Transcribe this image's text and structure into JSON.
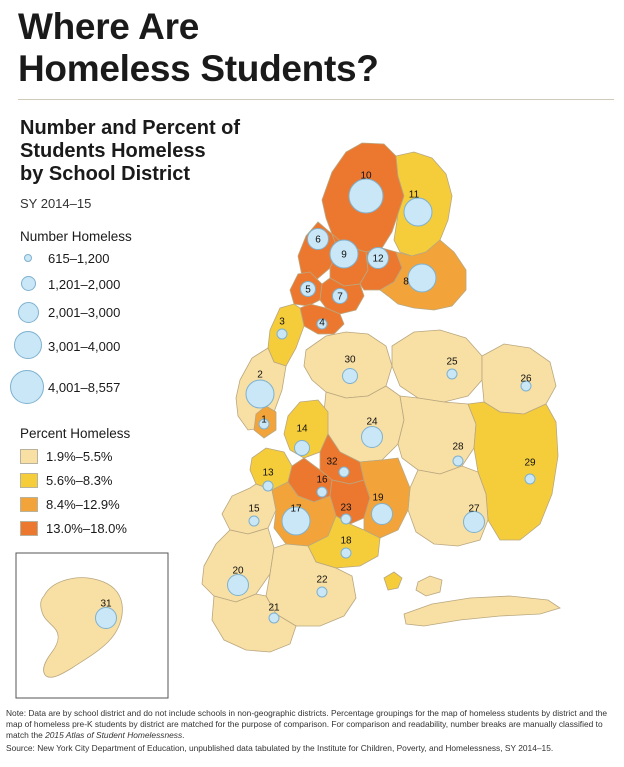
{
  "header": {
    "title_line1": "Where Are",
    "title_line2": "Homeless Students?"
  },
  "map": {
    "title_line1": "Number and Percent of",
    "title_line2": "Students Homeless",
    "title_line3": "by School District",
    "period": "SY 2014–15"
  },
  "legend": {
    "number_title": "Number Homeless",
    "number_bins": [
      "615–1,200",
      "1,201–2,000",
      "2,001–3,000",
      "3,001–4,000",
      "4,001–8,557"
    ],
    "percent_title": "Percent Homeless",
    "percent_bins": [
      {
        "label": "1.9%–5.5%",
        "color": "#f8dfa4"
      },
      {
        "label": "5.6%–8.3%",
        "color": "#f5cd3b"
      },
      {
        "label": "8.4%–12.9%",
        "color": "#f2a43a"
      },
      {
        "label": "13.0%–18.0%",
        "color": "#ec7830"
      }
    ]
  },
  "colors": {
    "water": "#ffffff",
    "bubble_fill": "#c9e7f6",
    "bubble_stroke": "#7fb1cf",
    "border": "#b9a77f"
  },
  "districts": [
    {
      "id": "1",
      "bin": 2,
      "size": 0
    },
    {
      "id": "2",
      "bin": 0,
      "size": 3
    },
    {
      "id": "3",
      "bin": 1,
      "size": 0
    },
    {
      "id": "4",
      "bin": 3,
      "size": 0
    },
    {
      "id": "5",
      "bin": 3,
      "size": 1
    },
    {
      "id": "6",
      "bin": 3,
      "size": 2
    },
    {
      "id": "7",
      "bin": 3,
      "size": 1
    },
    {
      "id": "8",
      "bin": 2,
      "size": 3
    },
    {
      "id": "9",
      "bin": 3,
      "size": 3
    },
    {
      "id": "10",
      "bin": 3,
      "size": 4
    },
    {
      "id": "11",
      "bin": 1,
      "size": 3
    },
    {
      "id": "12",
      "bin": 3,
      "size": 2
    },
    {
      "id": "13",
      "bin": 1,
      "size": 0
    },
    {
      "id": "14",
      "bin": 1,
      "size": 1
    },
    {
      "id": "15",
      "bin": 0,
      "size": 0
    },
    {
      "id": "16",
      "bin": 3,
      "size": 0
    },
    {
      "id": "17",
      "bin": 2,
      "size": 3
    },
    {
      "id": "18",
      "bin": 1,
      "size": 0
    },
    {
      "id": "19",
      "bin": 2,
      "size": 2
    },
    {
      "id": "20",
      "bin": 0,
      "size": 2
    },
    {
      "id": "21",
      "bin": 0,
      "size": 0
    },
    {
      "id": "22",
      "bin": 0,
      "size": 0
    },
    {
      "id": "23",
      "bin": 3,
      "size": 0
    },
    {
      "id": "24",
      "bin": 0,
      "size": 2
    },
    {
      "id": "25",
      "bin": 0,
      "size": 0
    },
    {
      "id": "26",
      "bin": 0,
      "size": 0
    },
    {
      "id": "27",
      "bin": 0,
      "size": 2
    },
    {
      "id": "28",
      "bin": 0,
      "size": 0
    },
    {
      "id": "29",
      "bin": 1,
      "size": 0
    },
    {
      "id": "30",
      "bin": 0,
      "size": 1
    },
    {
      "id": "31",
      "bin": 0,
      "size": 2
    },
    {
      "id": "32",
      "bin": 3,
      "size": 0
    }
  ],
  "notes": {
    "note_prefix": "Note: Data are by school district and do not include schools in non-geographic districts. Percentage groupings for the map of homeless students by district and the map of homeless pre-K students by district are matched for the purpose of comparison. For comparison and readability, number breaks are manually classified to match the ",
    "note_atlas": "2015 Atlas of Student Homelessness",
    "note_suffix": ".",
    "source": "Source: New York City Department of Education, unpublished data tabulated by the Institute for Children, Poverty, and Homelessness, SY 2014–15."
  }
}
